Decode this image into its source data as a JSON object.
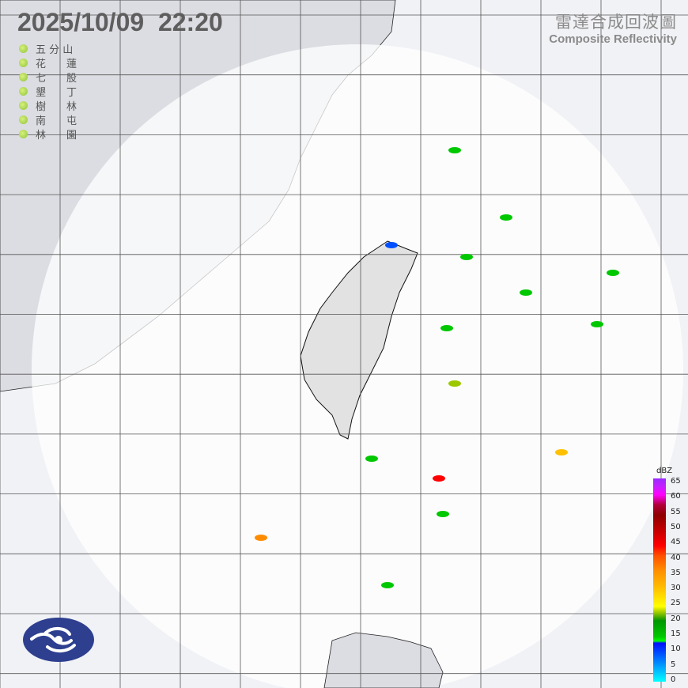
{
  "timestamp": "2025/10/09  22:20",
  "title": {
    "zh": "雷達合成回波圖",
    "en": "Composite Reflectivity"
  },
  "stations": [
    {
      "name": "五 分 山"
    },
    {
      "name": "花　　蓮"
    },
    {
      "name": "七　　股"
    },
    {
      "name": "墾　　丁"
    },
    {
      "name": "樹　　林"
    },
    {
      "name": "南　　屯"
    },
    {
      "name": "林　　園"
    }
  ],
  "station_status_color": "#9ccc40",
  "colorbar": {
    "unit": "dBZ",
    "ticks": [
      "65",
      "60",
      "55",
      "50",
      "45",
      "40",
      "35",
      "30",
      "25",
      "20",
      "15",
      "10",
      "5",
      "0"
    ]
  },
  "colors": {
    "background": "#f1f2f6",
    "radar_coverage": "#ffffff",
    "land": "#dcdde2",
    "grid": "#555555"
  },
  "logo": "cwa-logo"
}
